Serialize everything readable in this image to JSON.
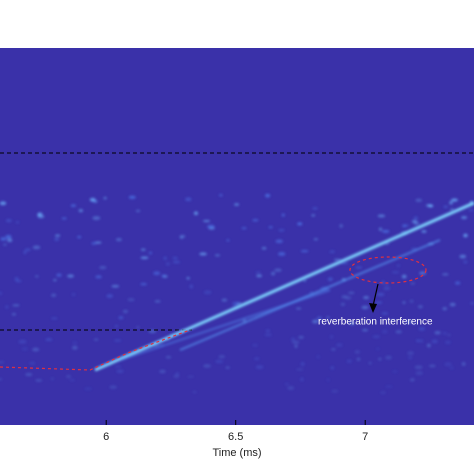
{
  "chart_data": {
    "type": "spectrogram",
    "x_label": "Time (ms)",
    "xlim": [
      5.59,
      7.42
    ],
    "xticks": [
      6,
      6.5,
      7
    ],
    "annotations": [
      "reverberation interference"
    ]
  }
}
